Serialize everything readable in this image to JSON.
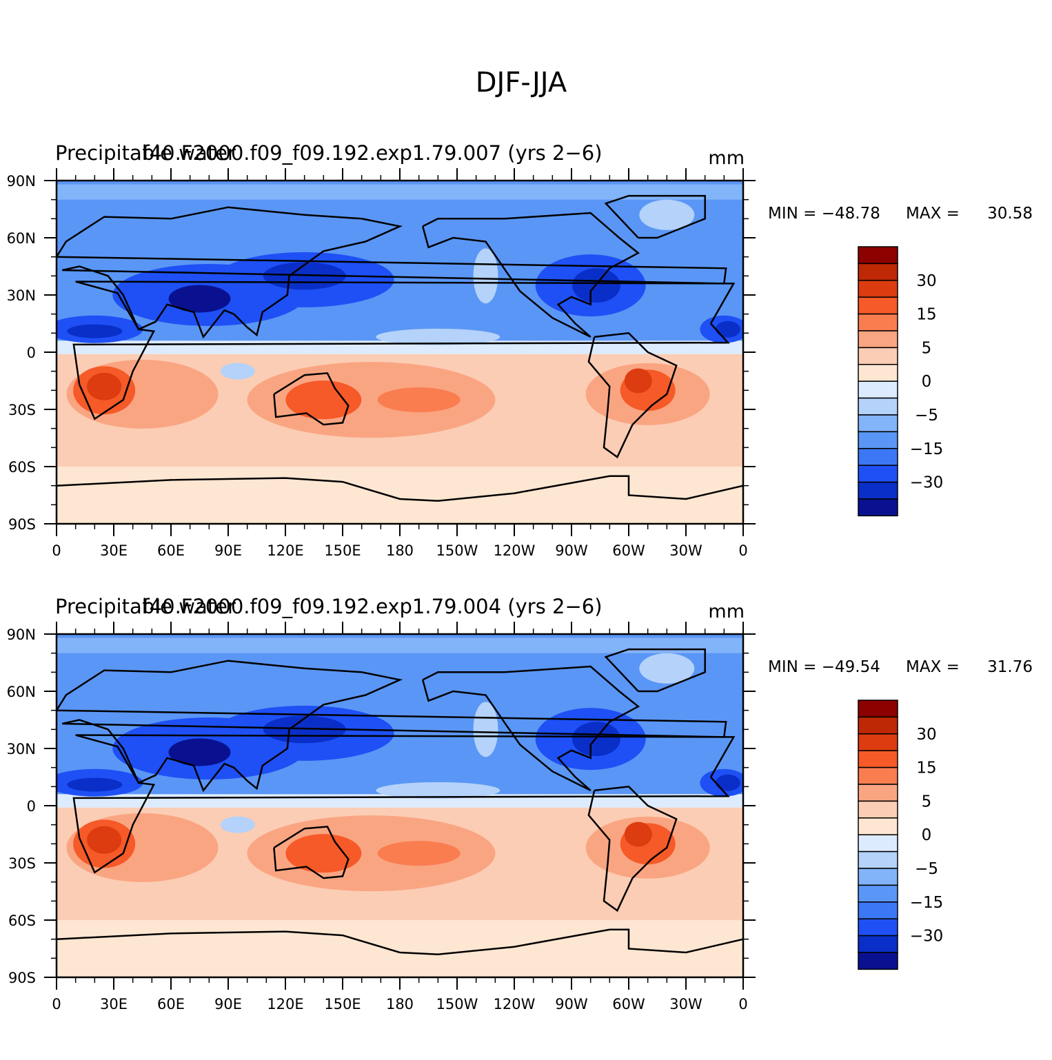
{
  "title": "DJF-JJA",
  "colorbar_colors": [
    "#0a1190",
    "#0a2fc8",
    "#1e50f5",
    "#3c78f5",
    "#5a96f5",
    "#82b4fa",
    "#b4d2fa",
    "#dcebfd",
    "#fde6d2",
    "#fbcdb4",
    "#faa582",
    "#fa7d50",
    "#f55a28",
    "#dc3c0f",
    "#be2805",
    "#8c0000"
  ],
  "colorbar_labels": [
    "30",
    "15",
    "5",
    "0",
    "−5",
    "−15",
    "−30"
  ],
  "continent_color": "#000000",
  "panels": [
    {
      "name": "panel-exp1-79-007",
      "left_title": "Precipitable water",
      "center_title": "f40.F2000.f09_f09.192.exp1.79.007 (yrs 2−6)",
      "units": "mm",
      "min_label": "MIN = −48.78",
      "max_label": "MAX =",
      "max_value": "30.58"
    },
    {
      "name": "panel-exp1-79-004",
      "left_title": "Precipitable water",
      "center_title": "f40.F2000.f09_f09.192.exp1.79.004 (yrs 2−6)",
      "units": "mm",
      "min_label": "MIN = −49.54",
      "max_label": "MAX =",
      "max_value": "31.76"
    }
  ],
  "lat_labels": [
    "90N",
    "60N",
    "30N",
    "0",
    "30S",
    "60S",
    "90S"
  ],
  "lon_labels": [
    "0",
    "30E",
    "60E",
    "90E",
    "120E",
    "150E",
    "180",
    "150W",
    "120W",
    "90W",
    "60W",
    "30W",
    "0"
  ]
}
